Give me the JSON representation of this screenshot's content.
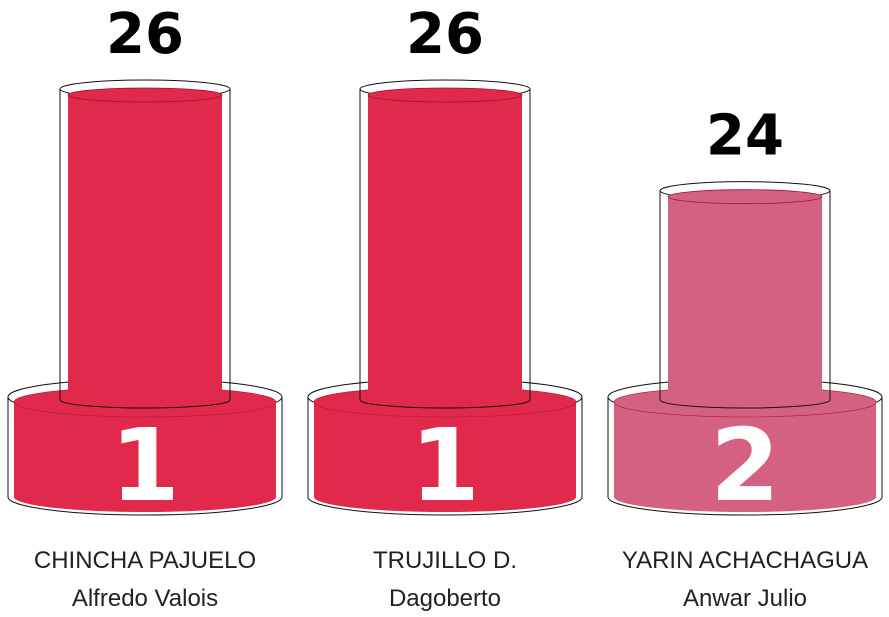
{
  "chart_data": {
    "type": "podium",
    "categories": [
      [
        "CHINCHA PAJUELO",
        "Alfredo Valois"
      ],
      [
        "TRUJILLO D.",
        "Dagoberto"
      ],
      [
        "YARIN ACHACHAGUA",
        "Anwar Julio"
      ]
    ],
    "values": [
      26,
      26,
      24
    ],
    "ranks": [
      1,
      1,
      2
    ],
    "colors": [
      "#e0294b",
      "#e0294b",
      "#d46182"
    ],
    "ylim": [
      20,
      26
    ]
  }
}
